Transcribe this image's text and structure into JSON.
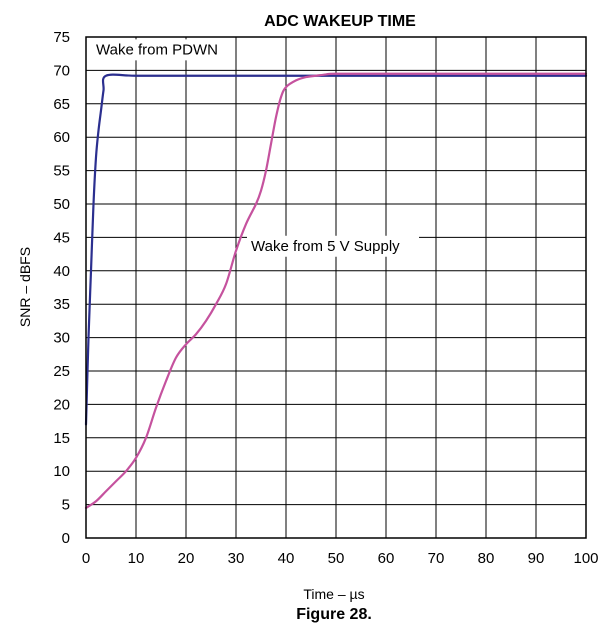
{
  "chart_data": {
    "type": "line",
    "title": "ADC WAKEUP TIME",
    "xlabel": "Time – µs",
    "ylabel": "SNR – dBFS",
    "caption": "Figure 28.",
    "xlim": [
      0,
      100
    ],
    "ylim": [
      0,
      75
    ],
    "xticks": [
      "0",
      "10",
      "20",
      "30",
      "40",
      "50",
      "60",
      "70",
      "80",
      "90",
      "100"
    ],
    "yticks": [
      "0",
      "5",
      "10",
      "15",
      "20",
      "25",
      "30",
      "35",
      "40",
      "45",
      "50",
      "55",
      "60",
      "65",
      "70",
      "75"
    ],
    "grid": true,
    "series": [
      {
        "name": "Wake from PDWN",
        "color": "#2b2f8f",
        "x": [
          0,
          0.5,
          1,
          1.5,
          2,
          2.5,
          3,
          3.5,
          4,
          10,
          20,
          40,
          60,
          80,
          100
        ],
        "y": [
          17,
          30,
          40,
          50,
          57,
          61,
          64,
          67,
          69.2,
          69.2,
          69.2,
          69.2,
          69.2,
          69.2,
          69.2
        ]
      },
      {
        "name": "Wake from 5 V Supply",
        "color": "#c5529e",
        "x": [
          0,
          2,
          4,
          6,
          8,
          10,
          12,
          14,
          16,
          18,
          20,
          22,
          24,
          26,
          28,
          30,
          32,
          34,
          35,
          36,
          37,
          38,
          39,
          40,
          42,
          44,
          46,
          48,
          50,
          60,
          70,
          80,
          90,
          100
        ],
        "y": [
          4.5,
          5.5,
          7,
          8.5,
          10,
          12,
          15,
          19.5,
          23.5,
          27,
          29,
          30.5,
          32.5,
          35,
          38,
          43,
          47,
          50,
          52,
          55,
          59,
          63,
          66,
          67.5,
          68.5,
          69,
          69.2,
          69.4,
          69.5,
          69.5,
          69.5,
          69.5,
          69.5,
          69.5
        ]
      }
    ],
    "annotations": [
      {
        "text": "Wake from PDWN",
        "x": 2,
        "y": 72.4
      },
      {
        "text": "Wake from 5 V Supply",
        "x": 33,
        "y": 43
      }
    ]
  }
}
